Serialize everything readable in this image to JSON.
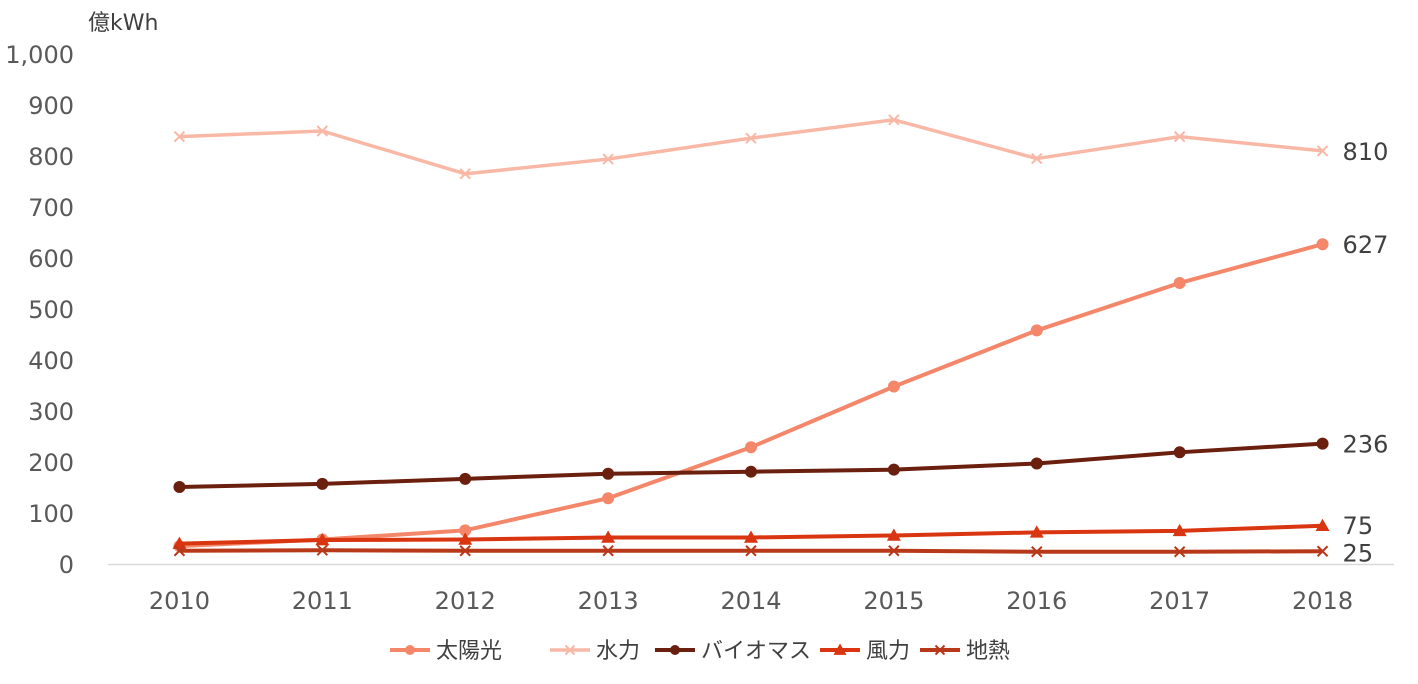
{
  "chart_data": {
    "type": "line",
    "unit": "億kWh",
    "categories": [
      "2010",
      "2011",
      "2012",
      "2013",
      "2014",
      "2015",
      "2016",
      "2017",
      "2018"
    ],
    "ylim": [
      0,
      1000
    ],
    "yticks": [
      "0",
      "100",
      "200",
      "300",
      "400",
      "500",
      "600",
      "700",
      "800",
      "900",
      "1,000"
    ],
    "grid": false,
    "legend_position": "bottom",
    "series": [
      {
        "name": "太陽光",
        "color": "#F4866A",
        "marker": "circle",
        "values": [
          35,
          48,
          66,
          129,
          229,
          348,
          458,
          551,
          627
        ],
        "end_label": "627"
      },
      {
        "name": "水力",
        "color": "#F9B8A6",
        "marker": "x",
        "values": [
          838,
          849,
          765,
          794,
          835,
          871,
          795,
          838,
          810
        ],
        "end_label": "810"
      },
      {
        "name": "バイオマス",
        "color": "#6B1F0E",
        "marker": "circle",
        "values": [
          151,
          157,
          167,
          177,
          181,
          185,
          197,
          219,
          236
        ],
        "end_label": "236"
      },
      {
        "name": "風力",
        "color": "#D93510",
        "marker": "triangle",
        "values": [
          40,
          47,
          48,
          52,
          52,
          56,
          62,
          65,
          75
        ],
        "end_label": "75"
      },
      {
        "name": "地熱",
        "color": "#B8391A",
        "marker": "x",
        "values": [
          26,
          27,
          26,
          26,
          26,
          26,
          24,
          24,
          25
        ],
        "end_label": "25"
      }
    ]
  }
}
